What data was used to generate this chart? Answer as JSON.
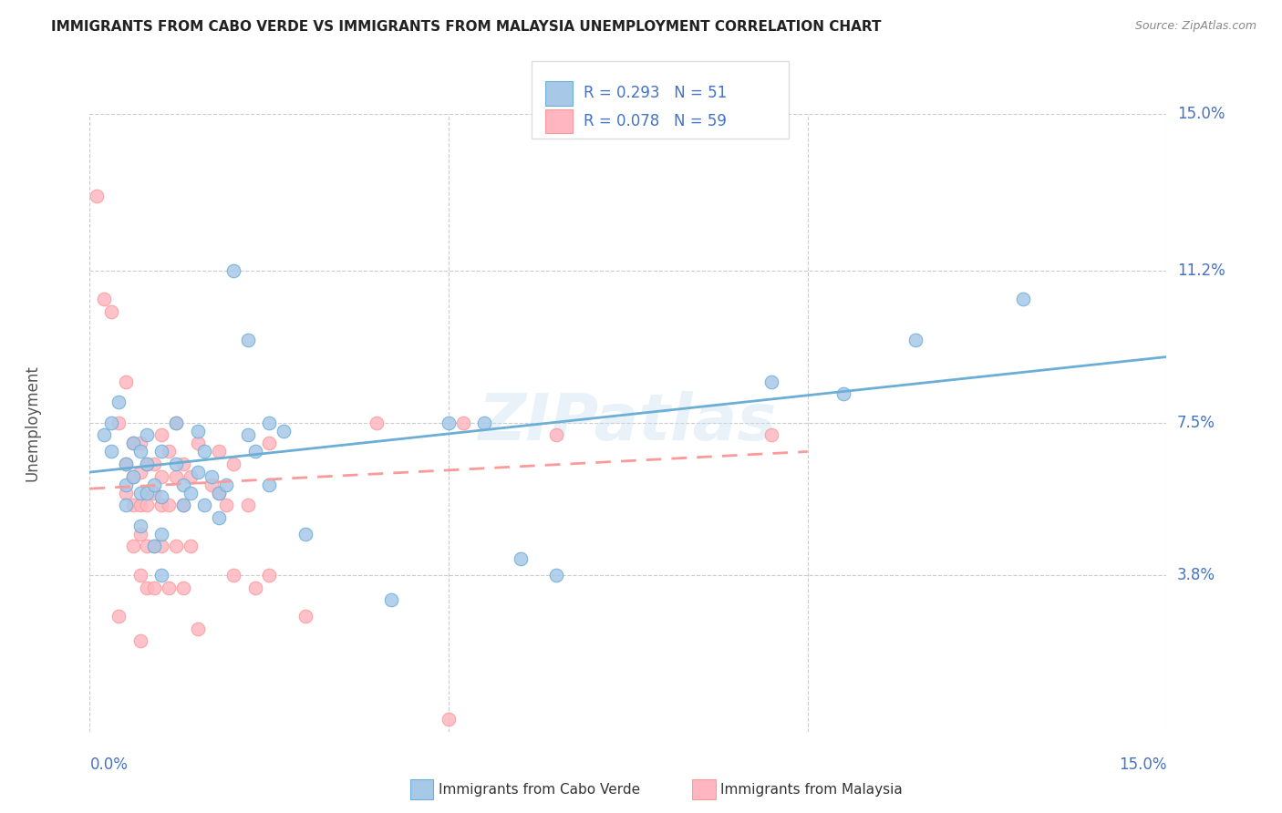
{
  "title": "IMMIGRANTS FROM CABO VERDE VS IMMIGRANTS FROM MALAYSIA UNEMPLOYMENT CORRELATION CHART",
  "source": "Source: ZipAtlas.com",
  "ylabel": "Unemployment",
  "xlim": [
    0.0,
    0.15
  ],
  "ylim": [
    0.0,
    0.15
  ],
  "cabo_verde_color": "#a8c8e8",
  "cabo_verde_edge": "#6baed6",
  "malaysia_color": "#ffb6c1",
  "malaysia_edge": "#fb9a99",
  "cabo_verde_line_color": "#6baed6",
  "malaysia_line_color": "#ffb6c1",
  "cabo_verde_R": "0.293",
  "cabo_verde_N": "51",
  "malaysia_R": "0.078",
  "malaysia_N": "59",
  "legend_label_1": "Immigrants from Cabo Verde",
  "legend_label_2": "Immigrants from Malaysia",
  "ytick_vals": [
    0.0,
    0.038,
    0.075,
    0.112,
    0.15
  ],
  "ytick_labels": [
    "",
    "3.8%",
    "7.5%",
    "11.2%",
    "15.0%"
  ],
  "xtick_vals": [
    0.0,
    0.05,
    0.1,
    0.15
  ],
  "xtick_labels": [
    "0.0%",
    "",
    "",
    "15.0%"
  ],
  "cabo_verde_points": [
    [
      0.002,
      0.072
    ],
    [
      0.003,
      0.075
    ],
    [
      0.003,
      0.068
    ],
    [
      0.004,
      0.08
    ],
    [
      0.005,
      0.065
    ],
    [
      0.005,
      0.06
    ],
    [
      0.005,
      0.055
    ],
    [
      0.006,
      0.07
    ],
    [
      0.006,
      0.062
    ],
    [
      0.007,
      0.068
    ],
    [
      0.007,
      0.058
    ],
    [
      0.007,
      0.05
    ],
    [
      0.008,
      0.072
    ],
    [
      0.008,
      0.065
    ],
    [
      0.008,
      0.058
    ],
    [
      0.009,
      0.06
    ],
    [
      0.009,
      0.045
    ],
    [
      0.01,
      0.068
    ],
    [
      0.01,
      0.057
    ],
    [
      0.01,
      0.048
    ],
    [
      0.01,
      0.038
    ],
    [
      0.012,
      0.075
    ],
    [
      0.012,
      0.065
    ],
    [
      0.013,
      0.06
    ],
    [
      0.013,
      0.055
    ],
    [
      0.014,
      0.058
    ],
    [
      0.015,
      0.073
    ],
    [
      0.015,
      0.063
    ],
    [
      0.016,
      0.068
    ],
    [
      0.016,
      0.055
    ],
    [
      0.017,
      0.062
    ],
    [
      0.018,
      0.058
    ],
    [
      0.018,
      0.052
    ],
    [
      0.019,
      0.06
    ],
    [
      0.02,
      0.112
    ],
    [
      0.022,
      0.095
    ],
    [
      0.022,
      0.072
    ],
    [
      0.023,
      0.068
    ],
    [
      0.025,
      0.075
    ],
    [
      0.025,
      0.06
    ],
    [
      0.027,
      0.073
    ],
    [
      0.03,
      0.048
    ],
    [
      0.042,
      0.032
    ],
    [
      0.05,
      0.075
    ],
    [
      0.055,
      0.075
    ],
    [
      0.06,
      0.042
    ],
    [
      0.065,
      0.038
    ],
    [
      0.095,
      0.085
    ],
    [
      0.105,
      0.082
    ],
    [
      0.115,
      0.095
    ],
    [
      0.13,
      0.105
    ]
  ],
  "malaysia_points": [
    [
      0.001,
      0.13
    ],
    [
      0.002,
      0.105
    ],
    [
      0.003,
      0.102
    ],
    [
      0.004,
      0.028
    ],
    [
      0.004,
      0.075
    ],
    [
      0.005,
      0.085
    ],
    [
      0.005,
      0.065
    ],
    [
      0.005,
      0.058
    ],
    [
      0.006,
      0.07
    ],
    [
      0.006,
      0.062
    ],
    [
      0.006,
      0.055
    ],
    [
      0.006,
      0.045
    ],
    [
      0.007,
      0.07
    ],
    [
      0.007,
      0.063
    ],
    [
      0.007,
      0.055
    ],
    [
      0.007,
      0.048
    ],
    [
      0.007,
      0.038
    ],
    [
      0.007,
      0.022
    ],
    [
      0.008,
      0.065
    ],
    [
      0.008,
      0.055
    ],
    [
      0.008,
      0.045
    ],
    [
      0.008,
      0.035
    ],
    [
      0.009,
      0.065
    ],
    [
      0.009,
      0.058
    ],
    [
      0.009,
      0.045
    ],
    [
      0.009,
      0.035
    ],
    [
      0.01,
      0.072
    ],
    [
      0.01,
      0.062
    ],
    [
      0.01,
      0.055
    ],
    [
      0.01,
      0.045
    ],
    [
      0.011,
      0.068
    ],
    [
      0.011,
      0.055
    ],
    [
      0.011,
      0.035
    ],
    [
      0.012,
      0.075
    ],
    [
      0.012,
      0.062
    ],
    [
      0.012,
      0.045
    ],
    [
      0.013,
      0.065
    ],
    [
      0.013,
      0.055
    ],
    [
      0.013,
      0.035
    ],
    [
      0.014,
      0.062
    ],
    [
      0.014,
      0.045
    ],
    [
      0.015,
      0.07
    ],
    [
      0.015,
      0.025
    ],
    [
      0.017,
      0.06
    ],
    [
      0.018,
      0.068
    ],
    [
      0.018,
      0.058
    ],
    [
      0.019,
      0.055
    ],
    [
      0.02,
      0.065
    ],
    [
      0.02,
      0.038
    ],
    [
      0.022,
      0.055
    ],
    [
      0.023,
      0.035
    ],
    [
      0.025,
      0.07
    ],
    [
      0.025,
      0.038
    ],
    [
      0.03,
      0.028
    ],
    [
      0.04,
      0.075
    ],
    [
      0.05,
      0.003
    ],
    [
      0.052,
      0.075
    ],
    [
      0.065,
      0.072
    ],
    [
      0.095,
      0.072
    ]
  ],
  "cabo_verde_trendline": [
    [
      0.0,
      0.063
    ],
    [
      0.15,
      0.091
    ]
  ],
  "malaysia_trendline": [
    [
      0.0,
      0.059
    ],
    [
      0.1,
      0.068
    ]
  ],
  "watermark": "ZIPatlas",
  "bg_color": "#ffffff",
  "grid_color": "#cccccc",
  "title_color": "#222222",
  "source_color": "#888888",
  "axis_label_color": "#4472c4",
  "ylabel_color": "#555555",
  "legend_text_color": "#333333",
  "legend_r_color": "#4472c4"
}
